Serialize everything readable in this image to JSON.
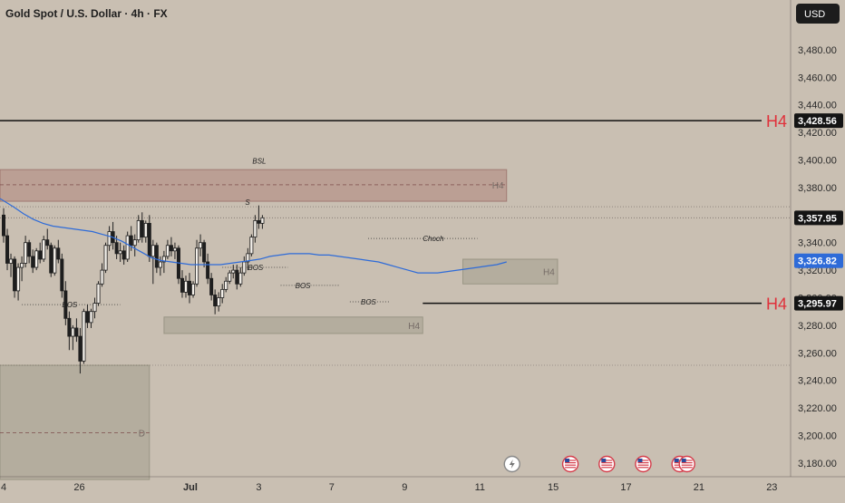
{
  "header": {
    "title": "Gold Spot / U.S. Dollar · 4h · FX",
    "currency": "USD"
  },
  "chart_data": {
    "type": "candlestick",
    "ylim": [
      3170,
      3510
    ],
    "y_ticks": [
      3180,
      3200,
      3220,
      3240,
      3260,
      3280,
      3300,
      3320,
      3340,
      3360,
      3380,
      3400,
      3420,
      3440,
      3460,
      3480
    ],
    "y_tick_labels": [
      "3,180.00",
      "3,200.00",
      "3,220.00",
      "3,240.00",
      "3,260.00",
      "3,280.00",
      "3,300.00",
      "3,320.00",
      "3,340.00",
      "3,360.00",
      "3,380.00",
      "3,400.00",
      "3,420.00",
      "3,440.00",
      "3,460.00",
      "3,480.00"
    ],
    "x_labels": [
      {
        "label": "4",
        "bar": 0
      },
      {
        "label": "26",
        "bar": 20
      },
      {
        "label": "Jul",
        "bar": 50
      },
      {
        "label": "3",
        "bar": 70
      },
      {
        "label": "7",
        "bar": 90
      },
      {
        "label": "9",
        "bar": 110
      },
      {
        "label": "11",
        "bar": 130
      },
      {
        "label": "15",
        "bar": 150
      },
      {
        "label": "17",
        "bar": 170
      },
      {
        "label": "21",
        "bar": 190
      },
      {
        "label": "23",
        "bar": 210
      }
    ],
    "price_badges": [
      {
        "value": 3428.56,
        "label": "3,428.56",
        "style": "black"
      },
      {
        "value": 3357.95,
        "label": "3,357.95",
        "style": "black"
      },
      {
        "value": 3326.82,
        "label": "3,326.82",
        "style": "blue"
      },
      {
        "value": 3295.97,
        "label": "3,295.97",
        "style": "black"
      }
    ],
    "levels": [
      {
        "value": 3428.56,
        "x0": 0,
        "x1": 210,
        "tag": "H4"
      },
      {
        "value": 3295.97,
        "x0": 115,
        "x1": 210,
        "tag": "H4"
      }
    ],
    "zones": [
      {
        "x0": 0,
        "x1": 138,
        "top": 3393,
        "bottom": 3370,
        "label": "H4",
        "mid_label": "BSL",
        "mid_value": 3382
      },
      {
        "x0": 126,
        "x1": 152,
        "top": 3328,
        "bottom": 3310,
        "label": "H4"
      },
      {
        "x0": 44,
        "x1": 115,
        "top": 3286,
        "bottom": 3274,
        "label": "H4"
      },
      {
        "x0": 0,
        "x1": 40,
        "top": 3251,
        "bottom": 3168,
        "label": "D",
        "mid_value": 3202
      }
    ],
    "annotations": [
      {
        "text": "BOS",
        "bar": 18,
        "value": 3295,
        "x0": 5,
        "x1": 32
      },
      {
        "text": "BOS",
        "bar": 69,
        "value": 3322,
        "x0": 60,
        "x1": 78
      },
      {
        "text": "BOS",
        "bar": 82,
        "value": 3309,
        "x0": 76,
        "x1": 92
      },
      {
        "text": "BOS",
        "bar": 100,
        "value": 3297,
        "x0": 95,
        "x1": 106
      },
      {
        "text": "Choch",
        "bar": 117,
        "value": 3343,
        "x0": 100,
        "x1": 130
      },
      {
        "text": "S",
        "bar": 67,
        "value": 3366,
        "x0": 0,
        "x1": 210
      },
      {
        "text": "BSL",
        "bar": 69,
        "value": 3396,
        "x0": 0,
        "x1": 138
      }
    ],
    "event_markers": [
      {
        "bar": 138,
        "icon": "bolt-icon"
      },
      {
        "bar": 154,
        "icon": "us-flag-icon"
      },
      {
        "bar": 164,
        "icon": "us-flag-icon"
      },
      {
        "bar": 174,
        "icon": "us-flag-icon"
      },
      {
        "bar": 184,
        "icon": "us-flag-icon"
      },
      {
        "bar": 186,
        "icon": "us-flag-icon"
      }
    ],
    "ohlc": [
      [
        3360,
        3365,
        3340,
        3345
      ],
      [
        3345,
        3350,
        3320,
        3325
      ],
      [
        3325,
        3332,
        3315,
        3328
      ],
      [
        3328,
        3330,
        3300,
        3305
      ],
      [
        3305,
        3325,
        3298,
        3322
      ],
      [
        3322,
        3330,
        3312,
        3325
      ],
      [
        3325,
        3345,
        3322,
        3340
      ],
      [
        3340,
        3342,
        3325,
        3330
      ],
      [
        3330,
        3335,
        3318,
        3322
      ],
      [
        3322,
        3336,
        3320,
        3334
      ],
      [
        3334,
        3340,
        3325,
        3328
      ],
      [
        3328,
        3345,
        3326,
        3342
      ],
      [
        3342,
        3350,
        3335,
        3338
      ],
      [
        3338,
        3340,
        3315,
        3318
      ],
      [
        3318,
        3338,
        3316,
        3336
      ],
      [
        3336,
        3342,
        3325,
        3328
      ],
      [
        3328,
        3332,
        3300,
        3305
      ],
      [
        3305,
        3312,
        3280,
        3285
      ],
      [
        3285,
        3290,
        3262,
        3272
      ],
      [
        3272,
        3280,
        3262,
        3278
      ],
      [
        3278,
        3285,
        3268,
        3272
      ],
      [
        3272,
        3278,
        3245,
        3254
      ],
      [
        3254,
        3292,
        3252,
        3290
      ],
      [
        3290,
        3295,
        3278,
        3282
      ],
      [
        3282,
        3292,
        3278,
        3290
      ],
      [
        3290,
        3300,
        3285,
        3296
      ],
      [
        3296,
        3312,
        3294,
        3310
      ],
      [
        3310,
        3325,
        3308,
        3320
      ],
      [
        3320,
        3340,
        3318,
        3338
      ],
      [
        3338,
        3352,
        3334,
        3348
      ],
      [
        3348,
        3355,
        3335,
        3340
      ],
      [
        3340,
        3345,
        3328,
        3332
      ],
      [
        3332,
        3340,
        3326,
        3334
      ],
      [
        3334,
        3338,
        3324,
        3328
      ],
      [
        3328,
        3348,
        3326,
        3345
      ],
      [
        3345,
        3352,
        3334,
        3338
      ],
      [
        3338,
        3346,
        3330,
        3342
      ],
      [
        3342,
        3360,
        3340,
        3356
      ],
      [
        3356,
        3362,
        3340,
        3344
      ],
      [
        3344,
        3356,
        3340,
        3354
      ],
      [
        3354,
        3360,
        3326,
        3330
      ],
      [
        3330,
        3342,
        3310,
        3338
      ],
      [
        3338,
        3340,
        3318,
        3322
      ],
      [
        3322,
        3330,
        3316,
        3326
      ],
      [
        3326,
        3334,
        3318,
        3330
      ],
      [
        3330,
        3342,
        3328,
        3338
      ],
      [
        3338,
        3344,
        3330,
        3334
      ],
      [
        3334,
        3340,
        3328,
        3336
      ],
      [
        3336,
        3338,
        3310,
        3314
      ],
      [
        3314,
        3320,
        3300,
        3304
      ],
      [
        3304,
        3316,
        3300,
        3312
      ],
      [
        3312,
        3318,
        3296,
        3302
      ],
      [
        3302,
        3312,
        3300,
        3310
      ],
      [
        3310,
        3342,
        3308,
        3336
      ],
      [
        3336,
        3346,
        3330,
        3340
      ],
      [
        3340,
        3342,
        3322,
        3326
      ],
      [
        3326,
        3332,
        3310,
        3314
      ],
      [
        3314,
        3318,
        3298,
        3302
      ],
      [
        3302,
        3306,
        3288,
        3294
      ],
      [
        3294,
        3304,
        3290,
        3300
      ],
      [
        3300,
        3310,
        3296,
        3306
      ],
      [
        3306,
        3315,
        3304,
        3312
      ],
      [
        3312,
        3320,
        3310,
        3318
      ],
      [
        3318,
        3324,
        3314,
        3320
      ],
      [
        3320,
        3324,
        3306,
        3310
      ],
      [
        3310,
        3322,
        3308,
        3318
      ],
      [
        3318,
        3330,
        3316,
        3326
      ],
      [
        3326,
        3336,
        3320,
        3332
      ],
      [
        3332,
        3346,
        3330,
        3344
      ],
      [
        3344,
        3360,
        3340,
        3356
      ],
      [
        3356,
        3367,
        3350,
        3354
      ],
      [
        3354,
        3360,
        3350,
        3358
      ]
    ],
    "ma_series": [
      3372,
      3366,
      3361,
      3357,
      3354,
      3352,
      3351,
      3350,
      3349,
      3348,
      3346,
      3344,
      3341,
      3337,
      3333,
      3329,
      3327,
      3326,
      3325,
      3324,
      3324,
      3324,
      3324,
      3325,
      3326,
      3327,
      3328,
      3330,
      3331,
      3332,
      3332,
      3332,
      3331,
      3331,
      3330,
      3329,
      3328,
      3327,
      3326,
      3324,
      3322,
      3320,
      3318,
      3318,
      3318,
      3319,
      3320,
      3321,
      3322,
      3323,
      3324,
      3326
    ],
    "ma_start_bar": 0,
    "ma_end_bar": 138
  }
}
